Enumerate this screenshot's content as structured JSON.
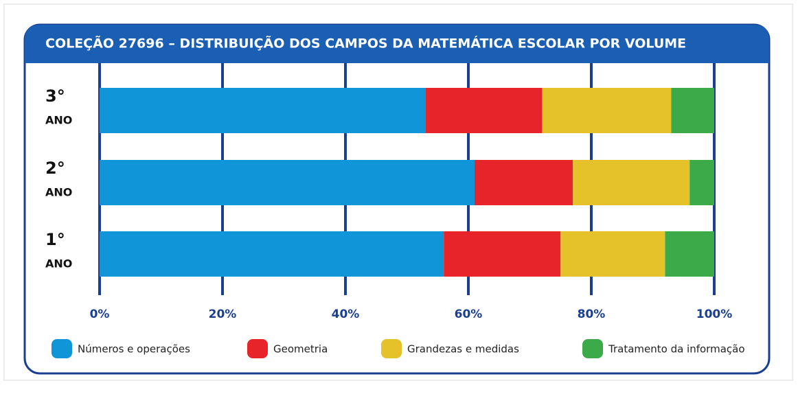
{
  "chart_data": {
    "type": "stacked-bar-horizontal",
    "title": "COLEÇÃO 27696 – DISTRIBUIÇÃO DOS CAMPOS DA MATEMÁTICA ESCOLAR POR VOLUME",
    "categories": [
      [
        "1°",
        "ANO"
      ],
      [
        "2°",
        "ANO"
      ],
      [
        "3°",
        "ANO"
      ]
    ],
    "series": [
      {
        "name": "Números e operações",
        "color": "#0f95d8",
        "values": [
          56,
          61,
          53
        ]
      },
      {
        "name": "Geometria",
        "color": "#e8242b",
        "values": [
          19,
          16,
          19
        ]
      },
      {
        "name": "Grandezas e medidas",
        "color": "#e5c22a",
        "values": [
          17,
          19,
          21
        ]
      },
      {
        "name": "Tratamento da informação",
        "color": "#3daa4a",
        "values": [
          8,
          4,
          7
        ]
      }
    ],
    "xlim": [
      0,
      100
    ],
    "xticks": [
      {
        "value": 0,
        "label": "0%"
      },
      {
        "value": 20,
        "label": "20%"
      },
      {
        "value": 40,
        "label": "40%"
      },
      {
        "value": 60,
        "label": "60%"
      },
      {
        "value": 80,
        "label": "80%"
      },
      {
        "value": 100,
        "label": "100%"
      }
    ],
    "grid": true,
    "legend": "bottom"
  }
}
